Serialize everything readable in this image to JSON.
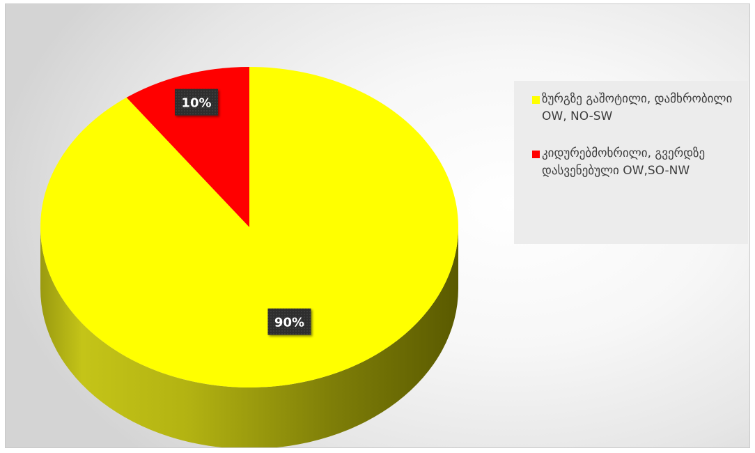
{
  "chart_data": {
    "type": "pie",
    "categories": [
      "ზურგზე გაშოტილი, დამხრობილი OW, NO-SW",
      "კიდურებმოხრილი, გვერდზე დასვენებული OW,SO-NW"
    ],
    "values": [
      90,
      10
    ],
    "data_labels": [
      "90%",
      "10%"
    ],
    "colors": [
      "#FFFF00",
      "#FF0000"
    ],
    "legend_position": "right",
    "title": ""
  }
}
